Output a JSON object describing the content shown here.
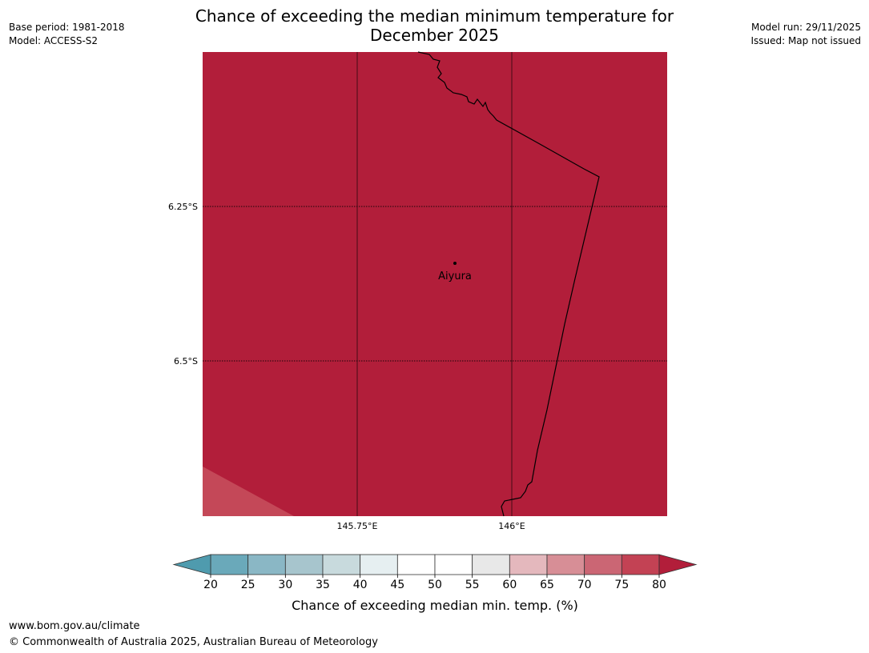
{
  "title": {
    "line1": "Chance of exceeding the median minimum temperature for",
    "line2": "December 2025"
  },
  "meta_left": {
    "base_period": "Base period: 1981-2018",
    "model": "Model: ACCESS-S2"
  },
  "meta_right": {
    "model_run": "Model run: 29/11/2025",
    "issued": "Issued: Map not issued"
  },
  "map": {
    "fill_color": "#b21e3a",
    "lower_left_color": "#c44858",
    "lat_labels": [
      "6.25°S",
      "6.5°S"
    ],
    "lon_labels": [
      "145.75°E",
      "146°E"
    ],
    "place": {
      "name": "Aiyura"
    }
  },
  "colorbar": {
    "label": "Chance of exceeding median min. temp. (%)",
    "ticks": [
      "20",
      "25",
      "30",
      "35",
      "40",
      "45",
      "50",
      "55",
      "60",
      "65",
      "70",
      "75",
      "80"
    ],
    "under_color": "#4f9bae",
    "over_color": "#b21e3a",
    "bins": [
      {
        "range": "20-25",
        "color": "#6aa9ba"
      },
      {
        "range": "25-30",
        "color": "#8ab7c5"
      },
      {
        "range": "30-35",
        "color": "#a7c5cd"
      },
      {
        "range": "35-40",
        "color": "#c8dadd"
      },
      {
        "range": "40-45",
        "color": "#e6eff1"
      },
      {
        "range": "45-50",
        "color": "#ffffff"
      },
      {
        "range": "50-55",
        "color": "#ffffff"
      },
      {
        "range": "55-60",
        "color": "#e8e8e8"
      },
      {
        "range": "60-65",
        "color": "#e4b8bd"
      },
      {
        "range": "65-70",
        "color": "#d78e96"
      },
      {
        "range": "70-75",
        "color": "#cb6674"
      },
      {
        "range": "75-80",
        "color": "#c34254"
      }
    ]
  },
  "footer": {
    "url": "www.bom.gov.au/climate",
    "copyright": "© Commonwealth of Australia 2025, Australian Bureau of Meteorology"
  }
}
